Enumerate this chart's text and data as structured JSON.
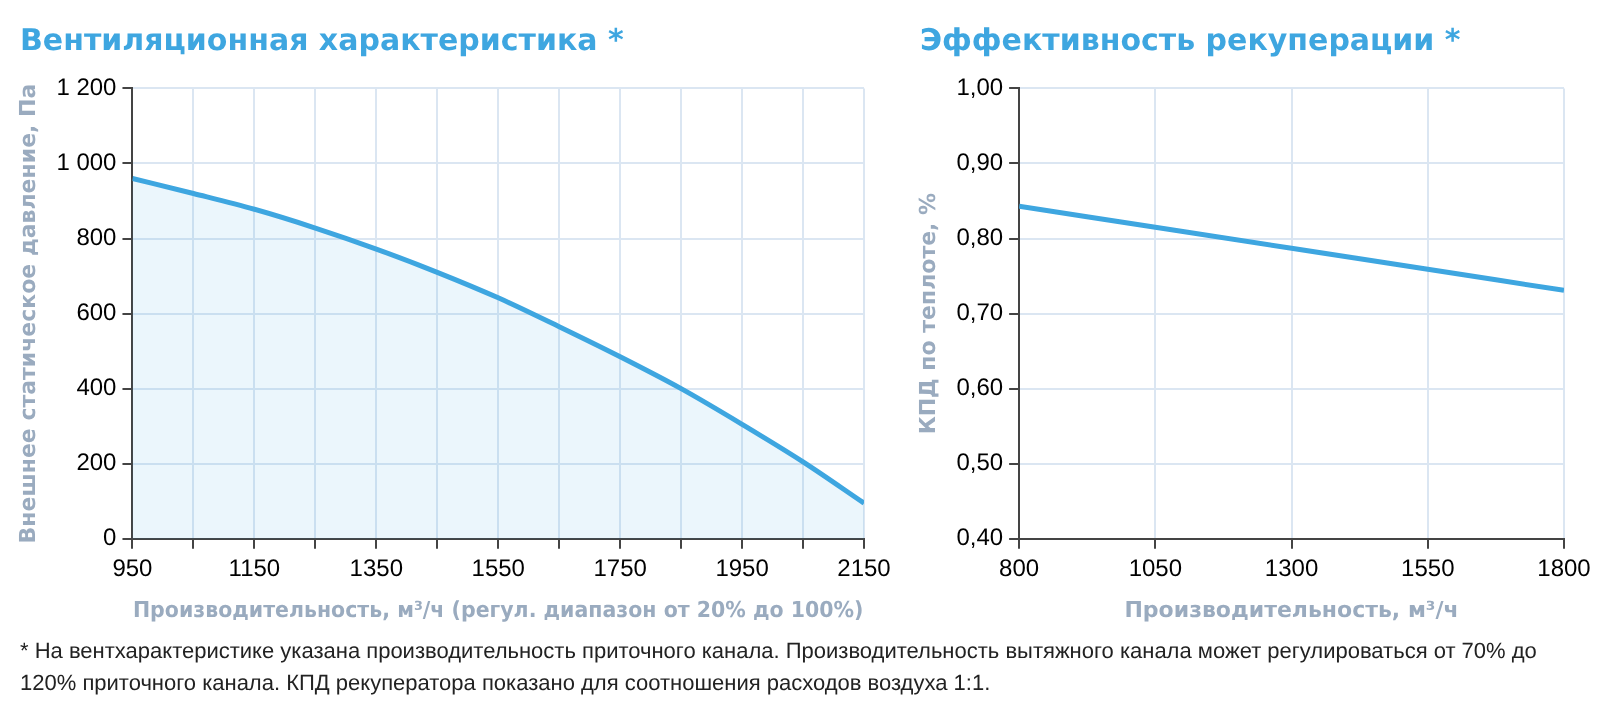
{
  "chart_data": [
    {
      "type": "area",
      "title": "Вентиляционная характеристика *",
      "xlabel": "Производительность, м³/ч (регул. диапазон от 20% до 100%)",
      "ylabel": "Внешнее статическое давление, Па",
      "x": [
        950,
        1050,
        1150,
        1250,
        1350,
        1450,
        1550,
        1650,
        1750,
        1850,
        1950,
        2050,
        2150
      ],
      "series": [
        {
          "color": "#3ea6e0",
          "values": [
            960,
            920,
            878,
            828,
            772,
            710,
            642,
            565,
            485,
            400,
            305,
            205,
            95
          ]
        }
      ],
      "xlim": [
        950,
        2150
      ],
      "xticks": [
        950,
        {
          "value": 1050,
          "label": null
        },
        1150,
        {
          "value": 1250,
          "label": null
        },
        1350,
        {
          "value": 1450,
          "label": null
        },
        1550,
        {
          "value": 1650,
          "label": null
        },
        1750,
        {
          "value": 1850,
          "label": null
        },
        1950,
        {
          "value": 2050,
          "label": null
        },
        2150
      ],
      "ylim": [
        0,
        1200
      ],
      "yticks": [
        0,
        200,
        400,
        600,
        800,
        {
          "value": 1000,
          "label": "1 000"
        },
        {
          "value": 1200,
          "label": "1 200"
        }
      ],
      "grid": true,
      "annotations": [
        "* На вентхарактеристике указана производительность приточного канала. Производительность вытяжного канала может регулироваться от 70% до 120% приточного канала. КПД рекуператора показано для соотношения расходов воздуха 1:1."
      ]
    },
    {
      "type": "line",
      "title": "Эффективность рекуперации *",
      "xlabel": "Производительность, м³/ч",
      "ylabel": "КПД по теплоте, %",
      "x": [
        800,
        1050,
        1300,
        1550,
        1800
      ],
      "series": [
        {
          "color": "#3ea6e0",
          "values": [
            0.843,
            0.815,
            0.787,
            0.759,
            0.731
          ]
        }
      ],
      "xlim": [
        800,
        1800
      ],
      "xticks": [
        800,
        1050,
        1300,
        1550,
        1800
      ],
      "ylim": [
        0.4,
        1.0
      ],
      "yticks": [
        {
          "value": 0.4,
          "label": "0,40"
        },
        {
          "value": 0.5,
          "label": "0,50"
        },
        {
          "value": 0.6,
          "label": "0,60"
        },
        {
          "value": 0.7,
          "label": "0,70"
        },
        {
          "value": 0.8,
          "label": "0,80"
        },
        {
          "value": 0.9,
          "label": "0,90"
        },
        {
          "value": 1.0,
          "label": "1,00"
        }
      ],
      "grid": true
    }
  ]
}
